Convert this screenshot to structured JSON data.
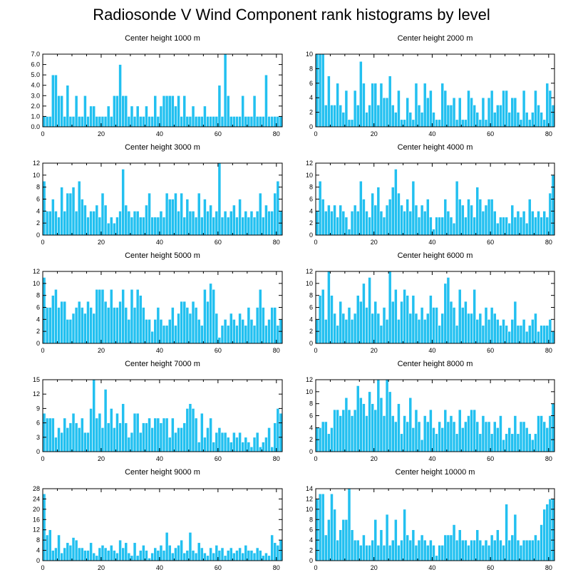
{
  "page": {
    "title": "Radiosonde V Wind Component rank histograms by level"
  },
  "style": {
    "bar_color": "#22c0f0",
    "bar_edge": "#ffffff",
    "axis_color": "#000000"
  },
  "chart_data": [
    {
      "type": "bar",
      "title": "Center height 1000 m",
      "x_range": [
        0,
        82
      ],
      "xticks": [
        0,
        20,
        40,
        60,
        80
      ],
      "ylim": [
        0,
        7
      ],
      "yticks": [
        0,
        1,
        2,
        3,
        4,
        5,
        6,
        7
      ],
      "ytick_labels": [
        "0.0",
        "1.0",
        "2.0",
        "3.0",
        "4.0",
        "5.0",
        "6.0",
        "7.0"
      ],
      "values": [
        1,
        1,
        1,
        5,
        5,
        3,
        3,
        1,
        4,
        1,
        1,
        3,
        1,
        1,
        3,
        1,
        2,
        2,
        1,
        1,
        1,
        1,
        2,
        1,
        3,
        3,
        6,
        3,
        3,
        1,
        2,
        1,
        2,
        1,
        1,
        2,
        1,
        1,
        3,
        1,
        2,
        3,
        3,
        3,
        3,
        2,
        3,
        1,
        3,
        1,
        1,
        2,
        1,
        1,
        1,
        2,
        1,
        1,
        1,
        1,
        4,
        1,
        7,
        3,
        1,
        1,
        1,
        1,
        3,
        1,
        1,
        1,
        3,
        1,
        1,
        1,
        5,
        1,
        1,
        1,
        1,
        1
      ]
    },
    {
      "type": "bar",
      "title": "Center height 2000 m",
      "x_range": [
        0,
        82
      ],
      "xticks": [
        0,
        20,
        40,
        60,
        80
      ],
      "ylim": [
        0,
        10
      ],
      "yticks": [
        0,
        2,
        4,
        6,
        8,
        10
      ],
      "ytick_labels": [
        "0",
        "2",
        "4",
        "6",
        "8",
        "10"
      ],
      "values": [
        10,
        10,
        10,
        3,
        7,
        3,
        3,
        6,
        3,
        2,
        5,
        1,
        1,
        5,
        3,
        9,
        6,
        2,
        3,
        6,
        6,
        3,
        6,
        4,
        4,
        7,
        3,
        2,
        5,
        1,
        1,
        4,
        2,
        1,
        6,
        3,
        2,
        6,
        4,
        5,
        2,
        1,
        1,
        6,
        5,
        3,
        3,
        4,
        1,
        4,
        1,
        1,
        5,
        4,
        3,
        2,
        1,
        4,
        1,
        4,
        5,
        2,
        3,
        3,
        5,
        5,
        2,
        4,
        4,
        2,
        1,
        5,
        2,
        1,
        2,
        5,
        3,
        2,
        1,
        6,
        5,
        3
      ]
    },
    {
      "type": "bar",
      "title": "Center height 3000 m",
      "x_range": [
        0,
        82
      ],
      "xticks": [
        0,
        20,
        40,
        60,
        80
      ],
      "ylim": [
        0,
        12
      ],
      "yticks": [
        0,
        2,
        4,
        6,
        8,
        10,
        12
      ],
      "ytick_labels": [
        "0",
        "2",
        "4",
        "6",
        "8",
        "10",
        "12"
      ],
      "values": [
        9,
        4,
        4,
        6,
        4,
        3,
        8,
        4,
        7,
        7,
        8,
        4,
        9,
        6,
        5,
        3,
        4,
        4,
        5,
        3,
        7,
        5,
        2,
        3,
        2,
        3,
        4,
        11,
        5,
        4,
        3,
        4,
        4,
        3,
        3,
        5,
        7,
        3,
        3,
        3,
        4,
        3,
        7,
        6,
        6,
        7,
        4,
        7,
        3,
        6,
        4,
        4,
        3,
        7,
        3,
        6,
        4,
        5,
        3,
        4,
        12,
        3,
        4,
        3,
        4,
        5,
        3,
        6,
        3,
        4,
        3,
        4,
        3,
        4,
        7,
        3,
        5,
        4,
        4,
        7,
        9,
        4
      ]
    },
    {
      "type": "bar",
      "title": "Center height 4000 m",
      "x_range": [
        0,
        82
      ],
      "xticks": [
        0,
        20,
        40,
        60,
        80
      ],
      "ylim": [
        0,
        12
      ],
      "yticks": [
        0,
        2,
        4,
        6,
        8,
        10,
        12
      ],
      "ytick_labels": [
        "0",
        "2",
        "4",
        "6",
        "8",
        "10",
        "12"
      ],
      "values": [
        4,
        9,
        6,
        4,
        5,
        4,
        5,
        3,
        5,
        4,
        3,
        1,
        4,
        5,
        4,
        9,
        6,
        4,
        3,
        7,
        5,
        8,
        4,
        3,
        5,
        6,
        8,
        11,
        7,
        5,
        4,
        6,
        4,
        9,
        5,
        3,
        5,
        4,
        6,
        3,
        1,
        3,
        3,
        3,
        6,
        4,
        3,
        2,
        9,
        6,
        5,
        3,
        6,
        5,
        3,
        8,
        6,
        4,
        5,
        6,
        6,
        4,
        2,
        3,
        3,
        3,
        2,
        5,
        3,
        4,
        3,
        4,
        2,
        6,
        4,
        3,
        4,
        3,
        4,
        3,
        7,
        10
      ]
    },
    {
      "type": "bar",
      "title": "Center height 5000 m",
      "x_range": [
        0,
        82
      ],
      "xticks": [
        0,
        20,
        40,
        60,
        80
      ],
      "ylim": [
        0,
        12
      ],
      "yticks": [
        0,
        2,
        4,
        6,
        8,
        10,
        12
      ],
      "ytick_labels": [
        "0",
        "2",
        "4",
        "6",
        "8",
        "10",
        "12"
      ],
      "values": [
        11,
        6,
        6,
        8,
        9,
        6,
        7,
        7,
        4,
        4,
        5,
        6,
        7,
        6,
        5,
        7,
        6,
        5,
        9,
        9,
        9,
        7,
        6,
        9,
        6,
        6,
        7,
        9,
        6,
        4,
        9,
        6,
        9,
        8,
        6,
        4,
        4,
        2,
        4,
        6,
        4,
        3,
        3,
        4,
        6,
        3,
        5,
        7,
        7,
        6,
        5,
        7,
        6,
        4,
        3,
        9,
        7,
        10,
        9,
        5,
        1,
        3,
        4,
        3,
        5,
        4,
        3,
        5,
        4,
        3,
        6,
        4,
        3,
        6,
        9,
        6,
        3,
        4,
        6,
        6,
        3,
        4
      ]
    },
    {
      "type": "bar",
      "title": "Center height 6000 m",
      "x_range": [
        0,
        82
      ],
      "xticks": [
        0,
        20,
        40,
        60,
        80
      ],
      "ylim": [
        0,
        12
      ],
      "yticks": [
        0,
        2,
        4,
        6,
        8,
        10,
        12
      ],
      "ytick_labels": [
        "0",
        "2",
        "4",
        "6",
        "8",
        "10",
        "12"
      ],
      "values": [
        4,
        8,
        9,
        4,
        12,
        8,
        5,
        3,
        7,
        5,
        4,
        6,
        4,
        5,
        8,
        7,
        10,
        6,
        11,
        5,
        7,
        5,
        3,
        6,
        4,
        12,
        7,
        9,
        4,
        7,
        9,
        8,
        5,
        8,
        5,
        4,
        6,
        4,
        5,
        8,
        6,
        6,
        3,
        5,
        10,
        11,
        7,
        6,
        3,
        9,
        6,
        7,
        5,
        5,
        9,
        4,
        5,
        3,
        6,
        4,
        6,
        5,
        4,
        3,
        4,
        3,
        2,
        4,
        7,
        3,
        3,
        4,
        2,
        3,
        4,
        5,
        2,
        3,
        3,
        3,
        4,
        2
      ]
    },
    {
      "type": "bar",
      "title": "Center height 7000 m",
      "x_range": [
        0,
        82
      ],
      "xticks": [
        0,
        20,
        40,
        60,
        80
      ],
      "ylim": [
        0,
        15
      ],
      "yticks": [
        0,
        3,
        6,
        9,
        12,
        15
      ],
      "ytick_labels": [
        "0",
        "3",
        "6",
        "9",
        "12",
        "15"
      ],
      "values": [
        8,
        7,
        7,
        7,
        3,
        5,
        4,
        7,
        5,
        6,
        8,
        6,
        5,
        7,
        4,
        4,
        9,
        15,
        7,
        8,
        5,
        13,
        6,
        9,
        5,
        8,
        6,
        10,
        6,
        3,
        4,
        8,
        8,
        4,
        6,
        6,
        7,
        5,
        7,
        7,
        6,
        7,
        7,
        3,
        7,
        4,
        5,
        5,
        6,
        9,
        10,
        9,
        7,
        2,
        8,
        3,
        5,
        7,
        2,
        4,
        5,
        4,
        4,
        3,
        2,
        4,
        3,
        4,
        2,
        3,
        2,
        1,
        3,
        4,
        1,
        2,
        3,
        5,
        1,
        6,
        9,
        8
      ]
    },
    {
      "type": "bar",
      "title": "Center height 8000 m",
      "x_range": [
        0,
        82
      ],
      "xticks": [
        0,
        20,
        40,
        60,
        80
      ],
      "ylim": [
        0,
        12
      ],
      "yticks": [
        0,
        2,
        4,
        6,
        8,
        10,
        12
      ],
      "ytick_labels": [
        "0",
        "2",
        "4",
        "6",
        "8",
        "10",
        "12"
      ],
      "values": [
        4,
        4,
        5,
        5,
        3,
        4,
        7,
        7,
        6,
        7,
        9,
        7,
        6,
        7,
        11,
        9,
        8,
        6,
        10,
        8,
        7,
        12,
        9,
        6,
        12,
        10,
        6,
        5,
        8,
        3,
        6,
        5,
        9,
        4,
        7,
        5,
        2,
        6,
        5,
        7,
        4,
        3,
        5,
        4,
        7,
        5,
        6,
        5,
        3,
        7,
        4,
        5,
        6,
        7,
        7,
        5,
        3,
        6,
        5,
        5,
        3,
        5,
        4,
        6,
        2,
        3,
        4,
        3,
        6,
        3,
        5,
        5,
        4,
        3,
        2,
        3,
        6,
        6,
        5,
        4,
        6,
        8
      ]
    },
    {
      "type": "bar",
      "title": "Center height 9000 m",
      "x_range": [
        0,
        82
      ],
      "xticks": [
        0,
        20,
        40,
        60,
        80
      ],
      "ylim": [
        0,
        28
      ],
      "yticks": [
        0,
        4,
        8,
        12,
        16,
        20,
        24,
        28
      ],
      "ytick_labels": [
        "0",
        "4",
        "8",
        "12",
        "16",
        "20",
        "24",
        "28"
      ],
      "values": [
        26,
        10,
        12,
        4,
        5,
        10,
        3,
        5,
        7,
        6,
        9,
        8,
        5,
        5,
        4,
        4,
        7,
        3,
        2,
        5,
        6,
        5,
        4,
        6,
        4,
        3,
        8,
        5,
        7,
        3,
        2,
        7,
        2,
        4,
        6,
        4,
        1,
        3,
        5,
        4,
        6,
        4,
        11,
        6,
        3,
        5,
        6,
        8,
        3,
        4,
        11,
        4,
        3,
        7,
        5,
        3,
        2,
        5,
        3,
        6,
        4,
        5,
        2,
        4,
        5,
        3,
        4,
        5,
        3,
        6,
        4,
        4,
        3,
        5,
        4,
        2,
        3,
        2,
        10,
        7,
        6,
        8
      ]
    },
    {
      "type": "bar",
      "title": "Center height 10000 m",
      "x_range": [
        0,
        82
      ],
      "xticks": [
        0,
        20,
        40,
        60,
        80
      ],
      "ylim": [
        0,
        14
      ],
      "yticks": [
        0,
        2,
        4,
        6,
        8,
        10,
        12,
        14
      ],
      "ytick_labels": [
        "0",
        "2",
        "4",
        "6",
        "8",
        "10",
        "12",
        "14"
      ],
      "values": [
        12,
        13,
        13,
        5,
        8,
        13,
        10,
        4,
        6,
        8,
        8,
        14,
        6,
        4,
        4,
        3,
        5,
        3,
        3,
        4,
        8,
        3,
        6,
        3,
        9,
        3,
        4,
        8,
        3,
        4,
        10,
        5,
        4,
        6,
        3,
        4,
        5,
        4,
        3,
        4,
        3,
        1,
        3,
        3,
        5,
        5,
        5,
        7,
        4,
        6,
        4,
        4,
        3,
        4,
        4,
        6,
        4,
        3,
        4,
        3,
        5,
        4,
        6,
        4,
        3,
        11,
        4,
        5,
        9,
        4,
        3,
        4,
        4,
        4,
        4,
        5,
        4,
        7,
        10,
        11,
        12,
        12
      ]
    }
  ]
}
